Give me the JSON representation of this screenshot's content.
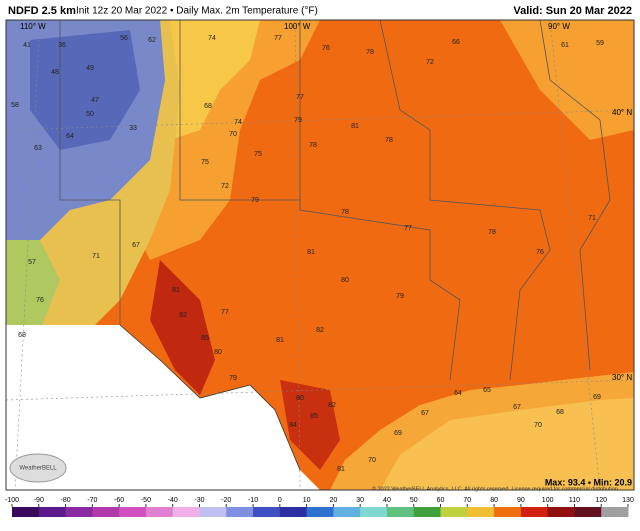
{
  "header": {
    "title": "NDFD 2.5 km",
    "subtitle": "Init 12z 20 Mar 2022 • Daily Max. 2m Temperature (°F)",
    "valid": "Valid: Sun 20 Mar 2022"
  },
  "map": {
    "graticule": [
      "110° W",
      "100° W",
      "90° W",
      "40° N",
      "30° N"
    ],
    "stations": [
      41,
      36,
      48,
      49,
      56,
      62,
      74,
      77,
      76,
      78,
      72,
      66,
      61,
      59,
      58,
      47,
      50,
      33,
      64,
      63,
      68,
      70,
      74,
      79,
      81,
      77,
      78,
      75,
      75,
      78,
      72,
      79,
      78,
      77,
      78,
      71,
      76,
      81,
      80,
      79,
      81,
      82,
      85,
      80,
      77,
      81,
      79,
      82,
      80,
      85,
      84,
      82,
      81,
      70,
      69,
      67,
      64,
      65,
      67,
      70,
      68,
      69,
      76,
      68,
      57,
      67,
      71
    ],
    "copyright": "© 2022 WeatherBELL Analytics, LLC. All rights reserved. License required for commercial distribution.",
    "logo": "WeatherBELL",
    "stats": "Max: 93.4 • Min: 20.9"
  },
  "colorbar": {
    "ticks": [
      -100,
      -90,
      -80,
      -70,
      -60,
      -50,
      -40,
      -30,
      -20,
      -10,
      0,
      10,
      20,
      30,
      40,
      50,
      60,
      70,
      80,
      90,
      100,
      110,
      120,
      130
    ],
    "colors": [
      "#3a0a5a",
      "#5a1a8a",
      "#8a2aa0",
      "#b03aa8",
      "#d050c0",
      "#e080d0",
      "#f0b0e8",
      "#c0c0f0",
      "#8090e0",
      "#4050c0",
      "#2a30a0",
      "#3070d0",
      "#60b0e0",
      "#80d8d0",
      "#60c080",
      "#40a040",
      "#c0d040",
      "#f0c030",
      "#f07010",
      "#d02010",
      "#901010",
      "#601020",
      "#a0a0a0"
    ]
  }
}
